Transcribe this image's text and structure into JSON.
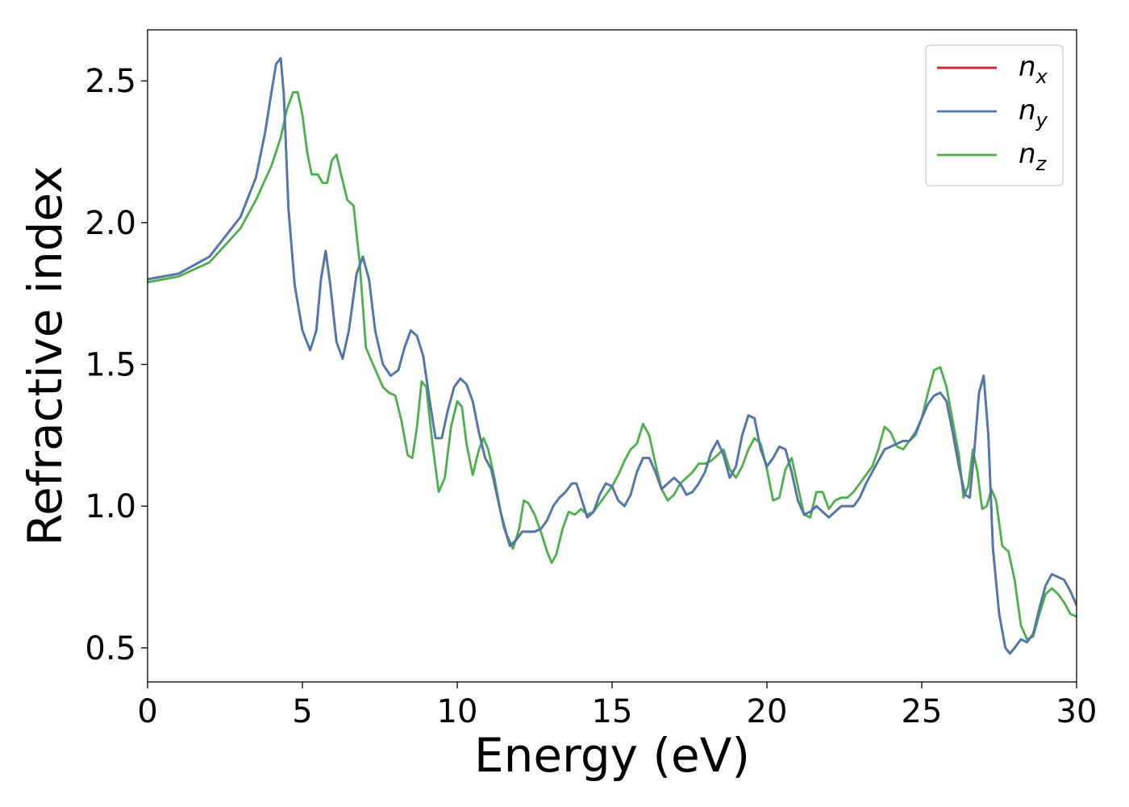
{
  "chart_data": {
    "type": "line",
    "title": "",
    "xlabel": "Energy (eV)",
    "ylabel": "Refractive index",
    "xlim": [
      0,
      30
    ],
    "ylim": [
      0.38,
      2.68
    ],
    "xticks": [
      0,
      5,
      10,
      15,
      20,
      25,
      30
    ],
    "xtick_labels": [
      "0",
      "5",
      "10",
      "15",
      "20",
      "25",
      "30"
    ],
    "yticks": [
      0.5,
      1.0,
      1.5,
      2.0,
      2.5
    ],
    "ytick_labels": [
      "0.5",
      "1.0",
      "1.5",
      "2.0",
      "2.5"
    ],
    "grid": false,
    "legend": "top-right",
    "series": [
      {
        "name": "n_x",
        "legend_base": "n",
        "legend_sub": "x",
        "color": "#e41a1c",
        "x": [
          0,
          1,
          2,
          3,
          3.5,
          3.8,
          4.0,
          4.15,
          4.3,
          4.4,
          4.55,
          4.75,
          5.0,
          5.25,
          5.45,
          5.6,
          5.75,
          5.9,
          6.1,
          6.3,
          6.5,
          6.75,
          6.95,
          7.15,
          7.35,
          7.6,
          7.85,
          8.1,
          8.3,
          8.5,
          8.7,
          8.9,
          9.1,
          9.3,
          9.5,
          9.7,
          9.9,
          10.1,
          10.3,
          10.5,
          10.7,
          10.9,
          11.1,
          11.3,
          11.5,
          11.7,
          11.9,
          12.1,
          12.3,
          12.5,
          12.7,
          12.9,
          13.1,
          13.3,
          13.5,
          13.7,
          13.85,
          14.0,
          14.2,
          14.4,
          14.6,
          14.8,
          15.0,
          15.2,
          15.4,
          15.6,
          15.8,
          16.0,
          16.2,
          16.4,
          16.6,
          16.8,
          17.0,
          17.2,
          17.4,
          17.6,
          17.8,
          18.0,
          18.2,
          18.4,
          18.6,
          18.8,
          19.0,
          19.2,
          19.4,
          19.6,
          19.8,
          20.0,
          20.2,
          20.4,
          20.6,
          20.8,
          21.0,
          21.2,
          21.4,
          21.6,
          21.8,
          22.0,
          22.2,
          22.4,
          22.6,
          22.8,
          23.0,
          23.2,
          23.4,
          23.6,
          23.8,
          24.0,
          24.2,
          24.4,
          24.6,
          24.8,
          25.0,
          25.2,
          25.4,
          25.6,
          25.8,
          26.0,
          26.2,
          26.4,
          26.55,
          26.7,
          26.85,
          27.0,
          27.15,
          27.3,
          27.5,
          27.7,
          27.85,
          28.0,
          28.2,
          28.4,
          28.6,
          28.8,
          29.0,
          29.2,
          29.4,
          29.6,
          29.8,
          30.0
        ],
        "y": [
          1.8,
          1.82,
          1.88,
          2.02,
          2.16,
          2.32,
          2.46,
          2.56,
          2.58,
          2.45,
          2.05,
          1.78,
          1.62,
          1.55,
          1.62,
          1.8,
          1.9,
          1.78,
          1.58,
          1.52,
          1.62,
          1.82,
          1.88,
          1.8,
          1.62,
          1.5,
          1.46,
          1.48,
          1.56,
          1.62,
          1.6,
          1.53,
          1.38,
          1.24,
          1.24,
          1.34,
          1.42,
          1.45,
          1.43,
          1.37,
          1.26,
          1.17,
          1.13,
          1.03,
          0.93,
          0.86,
          0.88,
          0.91,
          0.91,
          0.91,
          0.92,
          0.95,
          1.0,
          1.03,
          1.05,
          1.08,
          1.08,
          1.03,
          0.96,
          0.98,
          1.04,
          1.08,
          1.07,
          1.02,
          1.0,
          1.04,
          1.12,
          1.17,
          1.17,
          1.12,
          1.06,
          1.08,
          1.1,
          1.08,
          1.04,
          1.05,
          1.08,
          1.12,
          1.19,
          1.23,
          1.18,
          1.1,
          1.14,
          1.25,
          1.32,
          1.31,
          1.2,
          1.14,
          1.17,
          1.21,
          1.2,
          1.12,
          1.02,
          0.97,
          0.98,
          1.0,
          0.98,
          0.96,
          0.98,
          1.0,
          1.0,
          1.0,
          1.03,
          1.08,
          1.12,
          1.16,
          1.2,
          1.21,
          1.22,
          1.23,
          1.23,
          1.26,
          1.31,
          1.36,
          1.39,
          1.4,
          1.37,
          1.26,
          1.14,
          1.04,
          1.03,
          1.2,
          1.4,
          1.46,
          1.25,
          0.85,
          0.62,
          0.5,
          0.48,
          0.5,
          0.53,
          0.52,
          0.55,
          0.64,
          0.72,
          0.76,
          0.75,
          0.74,
          0.7,
          0.65
        ]
      },
      {
        "name": "n_y",
        "legend_base": "n",
        "legend_sub": "y",
        "color": "#4a7ab0",
        "x": [
          0,
          1,
          2,
          3,
          3.5,
          3.8,
          4.0,
          4.15,
          4.3,
          4.4,
          4.55,
          4.75,
          5.0,
          5.25,
          5.45,
          5.6,
          5.75,
          5.9,
          6.1,
          6.3,
          6.5,
          6.75,
          6.95,
          7.15,
          7.35,
          7.6,
          7.85,
          8.1,
          8.3,
          8.5,
          8.7,
          8.9,
          9.1,
          9.3,
          9.5,
          9.7,
          9.9,
          10.1,
          10.3,
          10.5,
          10.7,
          10.9,
          11.1,
          11.3,
          11.5,
          11.7,
          11.9,
          12.1,
          12.3,
          12.5,
          12.7,
          12.9,
          13.1,
          13.3,
          13.5,
          13.7,
          13.85,
          14.0,
          14.2,
          14.4,
          14.6,
          14.8,
          15.0,
          15.2,
          15.4,
          15.6,
          15.8,
          16.0,
          16.2,
          16.4,
          16.6,
          16.8,
          17.0,
          17.2,
          17.4,
          17.6,
          17.8,
          18.0,
          18.2,
          18.4,
          18.6,
          18.8,
          19.0,
          19.2,
          19.4,
          19.6,
          19.8,
          20.0,
          20.2,
          20.4,
          20.6,
          20.8,
          21.0,
          21.2,
          21.4,
          21.6,
          21.8,
          22.0,
          22.2,
          22.4,
          22.6,
          22.8,
          23.0,
          23.2,
          23.4,
          23.6,
          23.8,
          24.0,
          24.2,
          24.4,
          24.6,
          24.8,
          25.0,
          25.2,
          25.4,
          25.6,
          25.8,
          26.0,
          26.2,
          26.4,
          26.55,
          26.7,
          26.85,
          27.0,
          27.15,
          27.3,
          27.5,
          27.7,
          27.85,
          28.0,
          28.2,
          28.4,
          28.6,
          28.8,
          29.0,
          29.2,
          29.4,
          29.6,
          29.8,
          30.0
        ],
        "y": [
          1.8,
          1.82,
          1.88,
          2.02,
          2.16,
          2.32,
          2.46,
          2.56,
          2.58,
          2.45,
          2.05,
          1.78,
          1.62,
          1.55,
          1.62,
          1.8,
          1.9,
          1.78,
          1.58,
          1.52,
          1.62,
          1.82,
          1.88,
          1.8,
          1.62,
          1.5,
          1.46,
          1.48,
          1.56,
          1.62,
          1.6,
          1.53,
          1.38,
          1.24,
          1.24,
          1.34,
          1.42,
          1.45,
          1.43,
          1.37,
          1.26,
          1.17,
          1.13,
          1.03,
          0.93,
          0.86,
          0.88,
          0.91,
          0.91,
          0.91,
          0.92,
          0.95,
          1.0,
          1.03,
          1.05,
          1.08,
          1.08,
          1.03,
          0.96,
          0.98,
          1.04,
          1.08,
          1.07,
          1.02,
          1.0,
          1.04,
          1.12,
          1.17,
          1.17,
          1.12,
          1.06,
          1.08,
          1.1,
          1.08,
          1.04,
          1.05,
          1.08,
          1.12,
          1.19,
          1.23,
          1.18,
          1.1,
          1.14,
          1.25,
          1.32,
          1.31,
          1.2,
          1.14,
          1.17,
          1.21,
          1.2,
          1.12,
          1.02,
          0.97,
          0.98,
          1.0,
          0.98,
          0.96,
          0.98,
          1.0,
          1.0,
          1.0,
          1.03,
          1.08,
          1.12,
          1.16,
          1.2,
          1.21,
          1.22,
          1.23,
          1.23,
          1.26,
          1.31,
          1.36,
          1.39,
          1.4,
          1.37,
          1.26,
          1.14,
          1.04,
          1.03,
          1.2,
          1.4,
          1.46,
          1.25,
          0.85,
          0.62,
          0.5,
          0.48,
          0.5,
          0.53,
          0.52,
          0.55,
          0.64,
          0.72,
          0.76,
          0.75,
          0.74,
          0.7,
          0.65
        ]
      },
      {
        "name": "n_z",
        "legend_base": "n",
        "legend_sub": "z",
        "color": "#4daf4a",
        "x": [
          0,
          1,
          2,
          3,
          3.5,
          4.0,
          4.3,
          4.5,
          4.7,
          4.85,
          5.0,
          5.15,
          5.3,
          5.5,
          5.65,
          5.8,
          5.95,
          6.1,
          6.25,
          6.45,
          6.65,
          6.85,
          7.05,
          7.2,
          7.4,
          7.6,
          7.8,
          8.0,
          8.2,
          8.4,
          8.55,
          8.7,
          8.85,
          9.0,
          9.2,
          9.4,
          9.6,
          9.8,
          10.0,
          10.15,
          10.3,
          10.5,
          10.7,
          10.85,
          11.0,
          11.2,
          11.4,
          11.6,
          11.8,
          12.0,
          12.15,
          12.3,
          12.5,
          12.7,
          12.9,
          13.05,
          13.2,
          13.4,
          13.6,
          13.8,
          14.0,
          14.2,
          14.4,
          14.6,
          14.8,
          15.0,
          15.2,
          15.4,
          15.6,
          15.8,
          16.0,
          16.2,
          16.4,
          16.6,
          16.8,
          17.0,
          17.2,
          17.4,
          17.6,
          17.8,
          18.0,
          18.2,
          18.4,
          18.6,
          18.8,
          19.0,
          19.2,
          19.4,
          19.6,
          19.8,
          20.0,
          20.2,
          20.4,
          20.6,
          20.8,
          21.0,
          21.2,
          21.4,
          21.6,
          21.8,
          22.0,
          22.2,
          22.4,
          22.6,
          22.8,
          23.0,
          23.2,
          23.4,
          23.6,
          23.8,
          24.0,
          24.2,
          24.4,
          24.6,
          24.8,
          25.0,
          25.2,
          25.4,
          25.6,
          25.8,
          26.0,
          26.2,
          26.35,
          26.5,
          26.65,
          26.8,
          26.95,
          27.1,
          27.25,
          27.4,
          27.6,
          27.8,
          28.0,
          28.2,
          28.4,
          28.6,
          28.8,
          29.0,
          29.2,
          29.4,
          29.6,
          29.8,
          30.0
        ],
        "y": [
          1.79,
          1.81,
          1.86,
          1.98,
          2.08,
          2.2,
          2.3,
          2.4,
          2.46,
          2.46,
          2.38,
          2.25,
          2.17,
          2.17,
          2.14,
          2.14,
          2.22,
          2.24,
          2.17,
          2.08,
          2.06,
          1.86,
          1.56,
          1.52,
          1.47,
          1.42,
          1.4,
          1.39,
          1.3,
          1.18,
          1.17,
          1.28,
          1.44,
          1.42,
          1.22,
          1.05,
          1.1,
          1.28,
          1.37,
          1.35,
          1.22,
          1.11,
          1.2,
          1.24,
          1.2,
          1.1,
          0.98,
          0.9,
          0.85,
          0.92,
          1.02,
          1.01,
          0.97,
          0.91,
          0.84,
          0.8,
          0.83,
          0.92,
          0.98,
          0.97,
          0.99,
          0.97,
          0.98,
          1.01,
          1.04,
          1.07,
          1.11,
          1.16,
          1.2,
          1.22,
          1.29,
          1.25,
          1.15,
          1.06,
          1.02,
          1.04,
          1.08,
          1.1,
          1.12,
          1.15,
          1.15,
          1.16,
          1.18,
          1.2,
          1.13,
          1.1,
          1.14,
          1.2,
          1.24,
          1.22,
          1.13,
          1.02,
          1.03,
          1.13,
          1.17,
          1.07,
          0.97,
          0.96,
          1.05,
          1.05,
          0.99,
          1.02,
          1.03,
          1.03,
          1.05,
          1.08,
          1.11,
          1.14,
          1.2,
          1.28,
          1.26,
          1.21,
          1.2,
          1.23,
          1.25,
          1.31,
          1.4,
          1.48,
          1.49,
          1.42,
          1.3,
          1.18,
          1.03,
          1.07,
          1.2,
          1.12,
          0.99,
          1.0,
          1.06,
          1.02,
          0.86,
          0.84,
          0.74,
          0.58,
          0.53,
          0.54,
          0.62,
          0.69,
          0.71,
          0.69,
          0.66,
          0.62,
          0.61
        ]
      }
    ]
  }
}
